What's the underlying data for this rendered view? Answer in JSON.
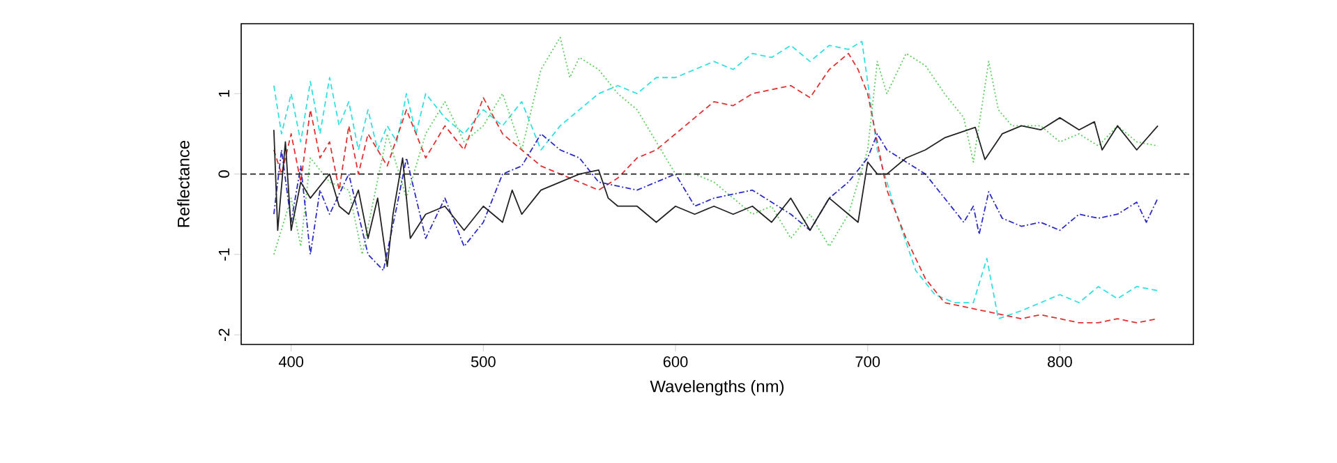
{
  "chart_data": {
    "type": "line",
    "xlabel": "Wavelengths (nm)",
    "ylabel": "Reflectance",
    "xlim": [
      374,
      869.5
    ],
    "ylim": [
      -2.12,
      1.87
    ],
    "xticks": [
      400,
      500,
      600,
      700,
      800
    ],
    "yticks": [
      -2,
      -1,
      0,
      1
    ],
    "ref_lines": [
      {
        "axis": "y",
        "value": 0,
        "color": "#222222",
        "line_style": "dashed"
      }
    ],
    "series": [
      {
        "color": "#30e0e0",
        "line_style": "dashed",
        "x": [
          391,
          395,
          400,
          405,
          410,
          415,
          420,
          425,
          430,
          435,
          440,
          445,
          450,
          455,
          460,
          465,
          470,
          480,
          490,
          500,
          510,
          520,
          530,
          540,
          550,
          560,
          570,
          580,
          590,
          600,
          610,
          620,
          630,
          640,
          650,
          660,
          670,
          680,
          690,
          697,
          705,
          715,
          725,
          735,
          745,
          755,
          762,
          768,
          780,
          790,
          800,
          810,
          820,
          830,
          840,
          851
        ],
        "values": [
          1.1,
          0.5,
          1.0,
          0.4,
          1.15,
          0.5,
          1.2,
          0.6,
          0.9,
          0.3,
          0.8,
          0.3,
          0.6,
          0.4,
          1.0,
          0.5,
          1.0,
          0.7,
          0.5,
          0.8,
          0.6,
          0.9,
          0.3,
          0.6,
          0.8,
          1.0,
          1.1,
          1.0,
          1.2,
          1.2,
          1.3,
          1.4,
          1.3,
          1.5,
          1.45,
          1.6,
          1.4,
          1.6,
          1.55,
          1.65,
          0.3,
          -0.5,
          -1.2,
          -1.5,
          -1.6,
          -1.6,
          -1.05,
          -1.8,
          -1.7,
          -1.6,
          -1.5,
          -1.6,
          -1.4,
          -1.55,
          -1.4,
          -1.45
        ]
      },
      {
        "color": "#e03030",
        "line_style": "dashed",
        "x": [
          391,
          395,
          400,
          405,
          410,
          415,
          420,
          425,
          430,
          435,
          440,
          450,
          460,
          470,
          480,
          490,
          500,
          510,
          520,
          530,
          540,
          550,
          560,
          570,
          580,
          590,
          600,
          610,
          620,
          630,
          640,
          650,
          660,
          670,
          680,
          690,
          695,
          700,
          710,
          720,
          730,
          740,
          750,
          760,
          770,
          780,
          790,
          800,
          810,
          820,
          830,
          840,
          851
        ],
        "values": [
          0.3,
          0.0,
          0.5,
          -0.1,
          0.8,
          0.2,
          0.4,
          -0.2,
          0.6,
          0.0,
          0.5,
          0.1,
          0.8,
          0.2,
          0.6,
          0.3,
          0.95,
          0.5,
          0.3,
          0.1,
          0.0,
          -0.1,
          -0.2,
          -0.05,
          0.2,
          0.3,
          0.5,
          0.7,
          0.9,
          0.85,
          1.0,
          1.05,
          1.1,
          0.95,
          1.3,
          1.5,
          1.3,
          1.0,
          -0.2,
          -0.8,
          -1.3,
          -1.6,
          -1.65,
          -1.7,
          -1.75,
          -1.8,
          -1.75,
          -1.8,
          -1.85,
          -1.85,
          -1.8,
          -1.85,
          -1.8
        ]
      },
      {
        "color": "#5ccc5c",
        "line_style": "dotted",
        "x": [
          391,
          400,
          405,
          410,
          420,
          430,
          437,
          450,
          460,
          470,
          480,
          490,
          500,
          510,
          520,
          530,
          540,
          545,
          550,
          560,
          570,
          580,
          590,
          600,
          610,
          620,
          630,
          640,
          650,
          660,
          670,
          680,
          690,
          700,
          705,
          710,
          720,
          730,
          740,
          750,
          755,
          763,
          768,
          775,
          790,
          800,
          810,
          820,
          830,
          840,
          851
        ],
        "values": [
          -1.0,
          -0.3,
          -0.9,
          0.2,
          -0.1,
          -0.2,
          -1.0,
          0.5,
          -0.3,
          0.5,
          0.9,
          0.4,
          0.6,
          1.0,
          0.3,
          1.3,
          1.7,
          1.2,
          1.45,
          1.3,
          1.0,
          0.8,
          0.4,
          0.0,
          0.0,
          -0.1,
          -0.3,
          -0.5,
          -0.4,
          -0.8,
          -0.5,
          -0.9,
          -0.5,
          0.3,
          1.4,
          1.0,
          1.5,
          1.35,
          1.0,
          0.7,
          0.15,
          1.4,
          0.8,
          0.6,
          0.6,
          0.4,
          0.5,
          0.35,
          0.6,
          0.4,
          0.35
        ]
      },
      {
        "color": "#2a2ac8",
        "line_style": "dashdot",
        "x": [
          391,
          395,
          400,
          405,
          410,
          415,
          420,
          430,
          440,
          448,
          455,
          460,
          470,
          480,
          490,
          500,
          510,
          520,
          530,
          540,
          550,
          560,
          580,
          600,
          610,
          620,
          640,
          660,
          670,
          680,
          690,
          700,
          705,
          710,
          720,
          730,
          740,
          750,
          755,
          758,
          763,
          770,
          780,
          790,
          800,
          810,
          820,
          830,
          840,
          845,
          851
        ],
        "values": [
          -0.5,
          0.3,
          -0.6,
          0.1,
          -1.0,
          -0.2,
          -0.5,
          0.0,
          -1.0,
          -1.2,
          -0.4,
          0.2,
          -0.8,
          -0.3,
          -0.9,
          -0.6,
          0.0,
          0.1,
          0.5,
          0.3,
          0.2,
          -0.1,
          -0.2,
          0.0,
          -0.4,
          -0.3,
          -0.2,
          -0.5,
          -0.7,
          -0.3,
          -0.1,
          0.2,
          0.5,
          0.3,
          0.15,
          0.0,
          -0.3,
          -0.6,
          -0.4,
          -0.75,
          -0.22,
          -0.55,
          -0.65,
          -0.6,
          -0.7,
          -0.5,
          -0.55,
          -0.5,
          -0.35,
          -0.6,
          -0.3
        ]
      },
      {
        "color": "#222222",
        "line_style": "solid",
        "x": [
          391,
          393,
          397,
          400,
          405,
          410,
          420,
          425,
          430,
          435,
          440,
          445,
          450,
          453,
          458,
          462,
          470,
          480,
          490,
          500,
          510,
          515,
          520,
          530,
          540,
          550,
          560,
          565,
          570,
          580,
          590,
          600,
          610,
          620,
          630,
          640,
          650,
          660,
          670,
          680,
          690,
          695,
          700,
          705,
          710,
          720,
          730,
          740,
          756,
          761,
          770,
          780,
          790,
          800,
          810,
          818,
          822,
          830,
          840,
          851
        ],
        "values": [
          0.55,
          -0.7,
          0.4,
          -0.7,
          -0.1,
          -0.3,
          0.0,
          -0.4,
          -0.5,
          -0.2,
          -0.8,
          -0.3,
          -1.15,
          -0.5,
          0.2,
          -0.8,
          -0.5,
          -0.4,
          -0.7,
          -0.4,
          -0.6,
          -0.2,
          -0.5,
          -0.2,
          -0.1,
          0.0,
          0.05,
          -0.3,
          -0.4,
          -0.4,
          -0.6,
          -0.4,
          -0.5,
          -0.4,
          -0.5,
          -0.4,
          -0.6,
          -0.3,
          -0.7,
          -0.3,
          -0.5,
          -0.6,
          0.15,
          0.0,
          0.0,
          0.2,
          0.3,
          0.45,
          0.58,
          0.18,
          0.5,
          0.6,
          0.55,
          0.7,
          0.55,
          0.65,
          0.3,
          0.6,
          0.3,
          0.6
        ]
      }
    ]
  }
}
